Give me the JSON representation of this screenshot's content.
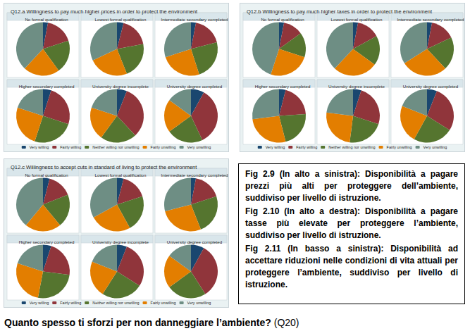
{
  "chart_data": [
    {
      "type": "pie",
      "title": "Q12.a Willingness to pay much higher prices in order to protect the environment",
      "categories": [
        "Very willing",
        "Fairly willing",
        "Neither willing nor unwilling",
        "Fairly unwilling",
        "Very unwilling"
      ],
      "colors": [
        "#1a476f",
        "#90353b",
        "#55752f",
        "#e37e00",
        "#6e8e84"
      ],
      "legend": "bottom",
      "pies": [
        {
          "title": "No formal qualification",
          "values": [
            3,
            17,
            20,
            22,
            38
          ]
        },
        {
          "title": "Lowest formal qualification",
          "values": [
            4,
            18,
            22,
            24,
            32
          ]
        },
        {
          "title": "Intermediate secondary completed",
          "values": [
            3,
            18,
            24,
            25,
            30
          ]
        },
        {
          "title": "Higher secondary completed",
          "values": [
            5,
            25,
            25,
            25,
            20
          ]
        },
        {
          "title": "University degree incomplete",
          "values": [
            6,
            32,
            22,
            20,
            20
          ]
        },
        {
          "title": "University degree completed",
          "values": [
            8,
            35,
            22,
            20,
            15
          ]
        }
      ]
    },
    {
      "type": "pie",
      "title": "Q12.b Willingness to pay much higher taxes in order to protect the environment",
      "categories": [
        "Very willing",
        "Fairly willing",
        "Neither willing nor unwilling",
        "Fairly unwilling",
        "Very unwilling"
      ],
      "colors": [
        "#1a476f",
        "#90353b",
        "#55752f",
        "#e37e00",
        "#6e8e84"
      ],
      "legend": "bottom",
      "pies": [
        {
          "title": "No formal qualification",
          "values": [
            3,
            12,
            15,
            25,
            45
          ]
        },
        {
          "title": "Lowest formal qualification",
          "values": [
            3,
            14,
            18,
            27,
            38
          ]
        },
        {
          "title": "Intermediate secondary completed",
          "values": [
            3,
            15,
            20,
            28,
            34
          ]
        },
        {
          "title": "Higher secondary completed",
          "values": [
            4,
            20,
            22,
            27,
            27
          ]
        },
        {
          "title": "University degree incomplete",
          "values": [
            5,
            25,
            22,
            25,
            23
          ]
        },
        {
          "title": "University degree completed",
          "values": [
            6,
            28,
            24,
            23,
            19
          ]
        }
      ]
    },
    {
      "type": "pie",
      "title": "Q12.c Willingness to accept cuts in standard of living to protect the environment",
      "categories": [
        "Very willing",
        "Fairly willing",
        "Neither willing nor unwilling",
        "Fairly unwilling",
        "Very unwilling"
      ],
      "colors": [
        "#1a476f",
        "#90353b",
        "#55752f",
        "#e37e00",
        "#6e8e84"
      ],
      "legend": "bottom",
      "pies": [
        {
          "title": "No formal qualification",
          "values": [
            4,
            15,
            20,
            22,
            39
          ]
        },
        {
          "title": "Lowest formal qualification",
          "values": [
            4,
            16,
            22,
            25,
            33
          ]
        },
        {
          "title": "Intermediate secondary completed",
          "values": [
            3,
            17,
            24,
            27,
            29
          ]
        },
        {
          "title": "Higher secondary completed",
          "values": [
            5,
            22,
            26,
            27,
            20
          ]
        },
        {
          "title": "University degree incomplete",
          "values": [
            6,
            28,
            25,
            22,
            19
          ]
        },
        {
          "title": "University degree completed",
          "values": [
            8,
            33,
            24,
            20,
            15
          ]
        }
      ]
    }
  ],
  "captions": [
    "Fig 2.9 (In alto a sinistra): Disponibilità a pagare prezzi più alti per proteggere dell’ambiente, suddiviso per livello di istruzione.",
    "Fig 2.10 (In alto a destra): Disponibilità a pagare tasse più elevate per proteggere l’ambiente, suddiviso per livello di istruzione.",
    "Fig 2.11 (In basso a sinistra): Disponibilità ad accettare riduzioni nelle condizioni di vita attuali per proteggere l’ambiente, suddiviso per livello di istruzione."
  ],
  "heading": {
    "text": "Quanto spesso ti sforzi per non danneggiare l’ambiente?",
    "ref": "(Q20)"
  }
}
